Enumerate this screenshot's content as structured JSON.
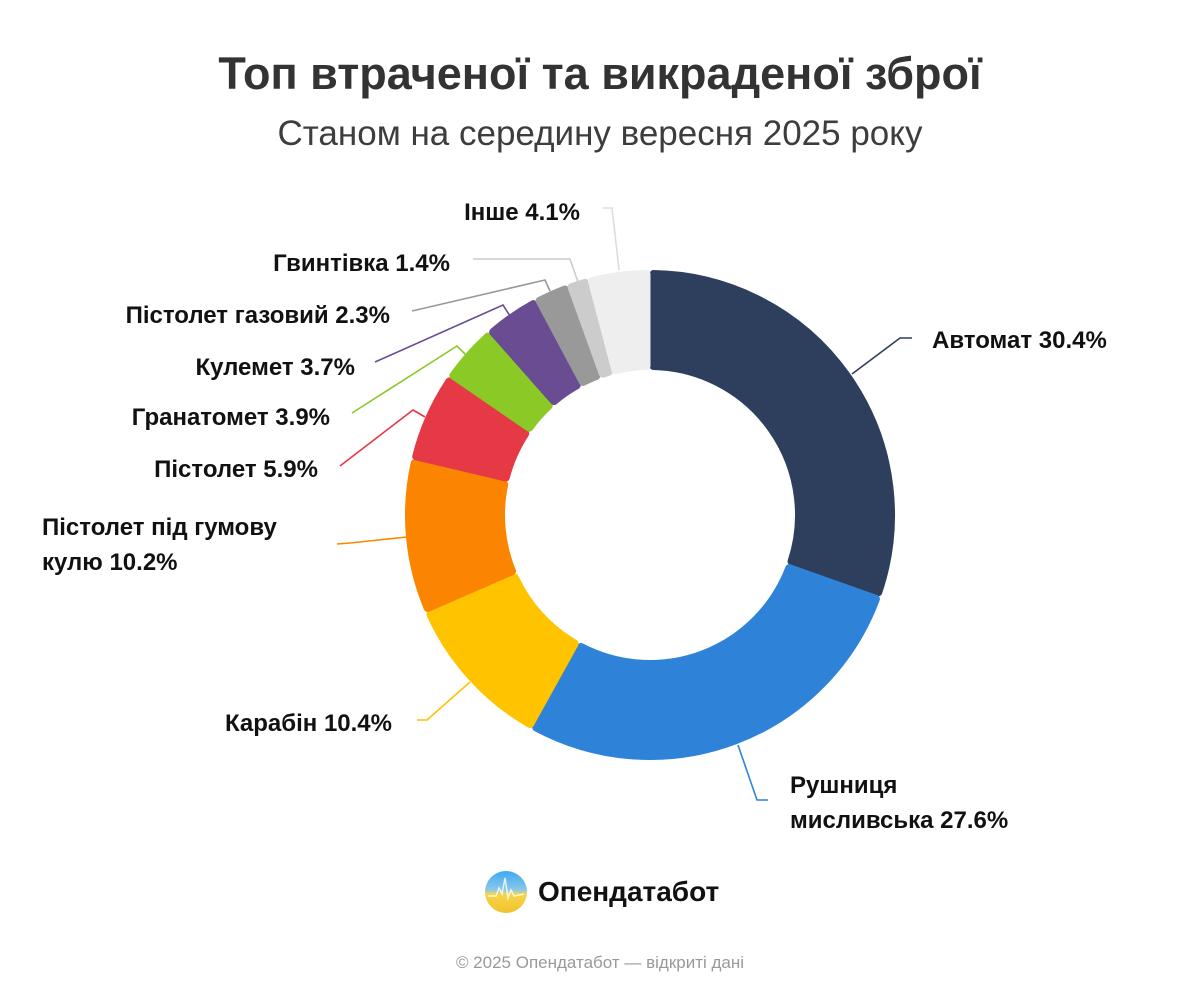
{
  "chart_data": {
    "type": "pie",
    "variant": "donut",
    "title": "Топ втраченої та викраденої зброї",
    "subtitle": "Станом на середину вересня 2025 року",
    "categories": [
      "Автомат",
      "Рушниця мисливська",
      "Карабін",
      "Пістолет під гумову кулю",
      "Пістолет",
      "Гранатомет",
      "Кулемет",
      "Пістолет газовий",
      "Гвинтівка",
      "Інше"
    ],
    "values": [
      30.4,
      27.6,
      10.4,
      10.2,
      5.9,
      3.9,
      3.7,
      2.3,
      1.4,
      4.1
    ],
    "unit": "%",
    "colors": [
      "#2E3F5E",
      "#2E83D9",
      "#FFC300",
      "#FB8500",
      "#E63946",
      "#8AC926",
      "#6A4C93",
      "#999999",
      "#CCCCCC",
      "#EEEEEE"
    ],
    "labels": [
      {
        "lines": [
          "Автомат 30.4%"
        ]
      },
      {
        "lines": [
          "Рушниця",
          "мисливська 27.6%"
        ]
      },
      {
        "lines": [
          "Карабін 10.4%"
        ]
      },
      {
        "lines": [
          "Пістолет під гумову",
          "кулю 10.2%"
        ]
      },
      {
        "lines": [
          "Пістолет 5.9%"
        ]
      },
      {
        "lines": [
          "Гранатомет 3.9%"
        ]
      },
      {
        "lines": [
          "Кулемет 3.7%"
        ]
      },
      {
        "lines": [
          "Пістолет газовий 2.3%"
        ]
      },
      {
        "lines": [
          "Гвинтівка 1.4%"
        ]
      },
      {
        "lines": [
          "Інше 4.1%"
        ]
      }
    ],
    "legend": "none"
  },
  "brand": {
    "name": "Опендатабот"
  },
  "footer": "© 2025 Опендатабот — відкриті дані"
}
